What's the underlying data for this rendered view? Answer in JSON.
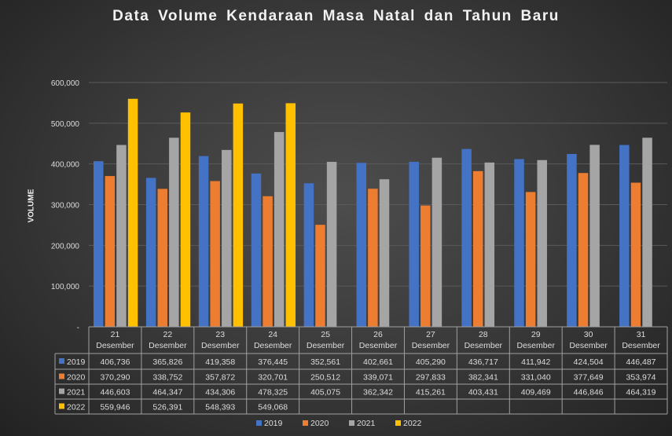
{
  "chart_data": {
    "type": "bar",
    "title": "Data Volume Kendaraan Masa Natal dan Tahun Baru",
    "xlabel": "",
    "ylabel": "VOLUME",
    "ylim": [
      0,
      600000
    ],
    "yticks": [
      "-",
      "100,000",
      "200,000",
      "300,000",
      "400,000",
      "500,000",
      "600,000"
    ],
    "categories": [
      [
        "21",
        "Desember"
      ],
      [
        "22",
        "Desember"
      ],
      [
        "23",
        "Desember"
      ],
      [
        "24",
        "Desember"
      ],
      [
        "25",
        "Desember"
      ],
      [
        "26",
        "Desember"
      ],
      [
        "27",
        "Desember"
      ],
      [
        "28",
        "Desember"
      ],
      [
        "29",
        "Desember"
      ],
      [
        "30",
        "Desember"
      ],
      [
        "31",
        "Desember"
      ]
    ],
    "series": [
      {
        "name": "2019",
        "color": "#4472c4",
        "values": [
          406736,
          365826,
          419358,
          376445,
          352561,
          402661,
          405290,
          436717,
          411942,
          424504,
          446487
        ]
      },
      {
        "name": "2020",
        "color": "#ed7d31",
        "values": [
          370290,
          338752,
          357872,
          320701,
          250512,
          339071,
          297833,
          382341,
          331040,
          377649,
          353974
        ]
      },
      {
        "name": "2021",
        "color": "#a5a5a5",
        "values": [
          446603,
          464347,
          434306,
          478325,
          405075,
          362342,
          415261,
          403431,
          409469,
          446846,
          464319
        ]
      },
      {
        "name": "2022",
        "color": "#ffc000",
        "values": [
          559946,
          526391,
          548393,
          549068,
          null,
          null,
          null,
          null,
          null,
          null,
          null
        ]
      }
    ],
    "grid": true,
    "legend": "bottom",
    "data_table": true
  }
}
